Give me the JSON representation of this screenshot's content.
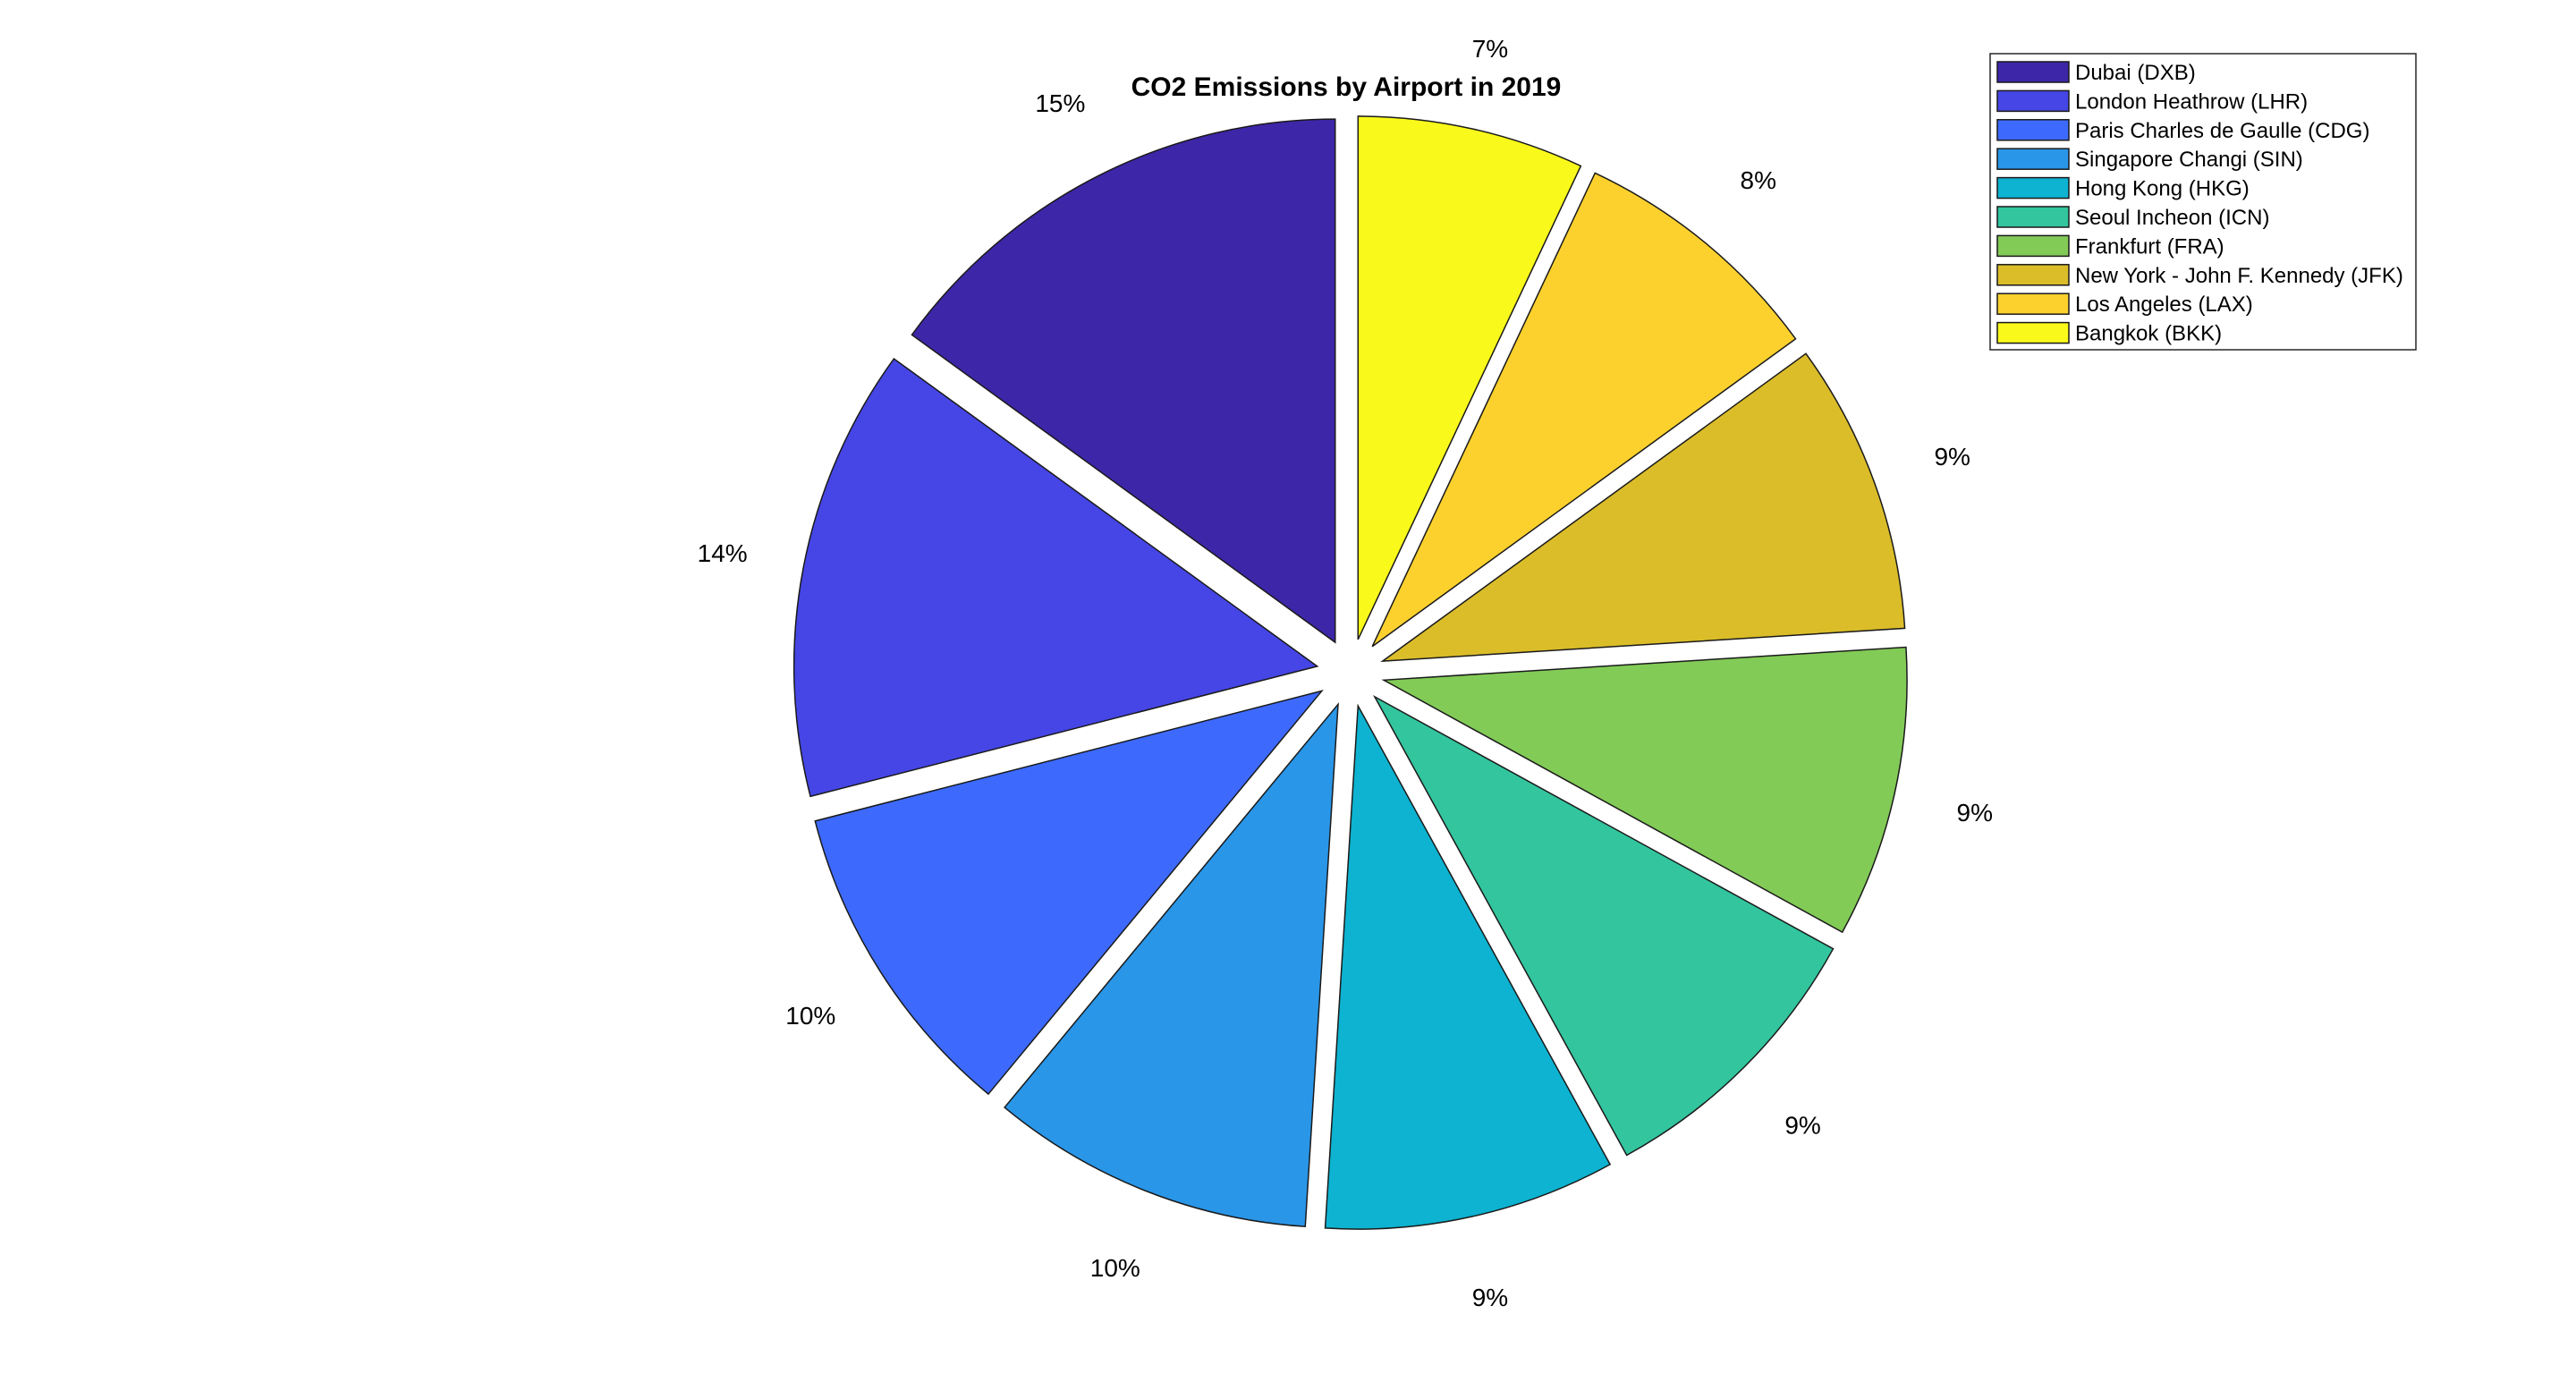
{
  "chart_data": {
    "type": "pie",
    "title": "CO2 Emissions by Airport in 2019",
    "exploded": true,
    "direction": "counterclockwise",
    "legend_position": "top-right",
    "categories": [
      "Dubai (DXB)",
      "London Heathrow (LHR)",
      "Paris Charles de Gaulle (CDG)",
      "Singapore Changi (SIN)",
      "Hong Kong (HKG)",
      "Seoul Incheon (ICN)",
      "Frankfurt (FRA)",
      "New York - John F. Kennedy (JFK)",
      "Los Angeles (LAX)",
      "Bangkok (BKK)"
    ],
    "values": [
      15,
      14,
      10,
      10,
      9,
      9,
      9,
      9,
      8,
      7
    ],
    "labels": [
      "15%",
      "14%",
      "10%",
      "10%",
      "9%",
      "9%",
      "9%",
      "9%",
      "8%",
      "7%"
    ],
    "colors": [
      "#3e26a8",
      "#4646e6",
      "#3d6afd",
      "#2996e8",
      "#0db3d0",
      "#32c59e",
      "#82cb57",
      "#dbbd2a",
      "#fcd12e",
      "#f9f91b"
    ]
  }
}
